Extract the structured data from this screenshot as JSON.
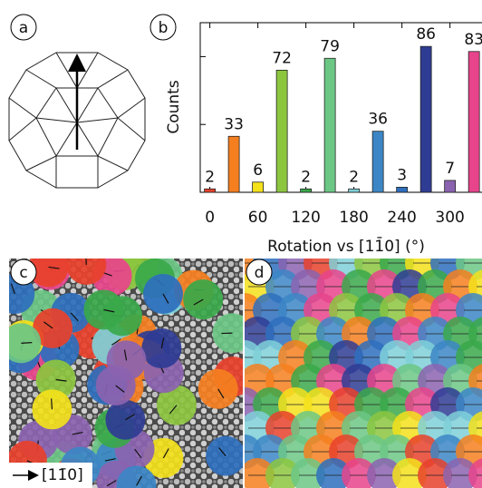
{
  "chart_data": {
    "type": "bar",
    "x": [
      0,
      30,
      60,
      90,
      120,
      150,
      180,
      210,
      240,
      270,
      300,
      330
    ],
    "values": [
      2,
      33,
      6,
      72,
      2,
      79,
      2,
      36,
      3,
      86,
      7,
      83
    ],
    "colors": [
      "#e8412b",
      "#f57f1f",
      "#f3e11b",
      "#8cc63f",
      "#3aa84a",
      "#6cc785",
      "#7fd0d8",
      "#3c86c6",
      "#2e6fbd",
      "#2f3c94",
      "#8b63b0",
      "#e8448b"
    ],
    "xlim": [
      -12,
      340
    ],
    "xticks": [
      0,
      60,
      120,
      180,
      240,
      300
    ],
    "ylim": [
      0,
      100
    ],
    "yticks": [
      40,
      80
    ],
    "xlabel": "Rotation vs [11̄0] (°)",
    "ylabel": "Counts"
  },
  "panels": {
    "a": "a",
    "b": "b",
    "c": "c",
    "d": "d",
    "direction_label": "[11̄0]"
  }
}
